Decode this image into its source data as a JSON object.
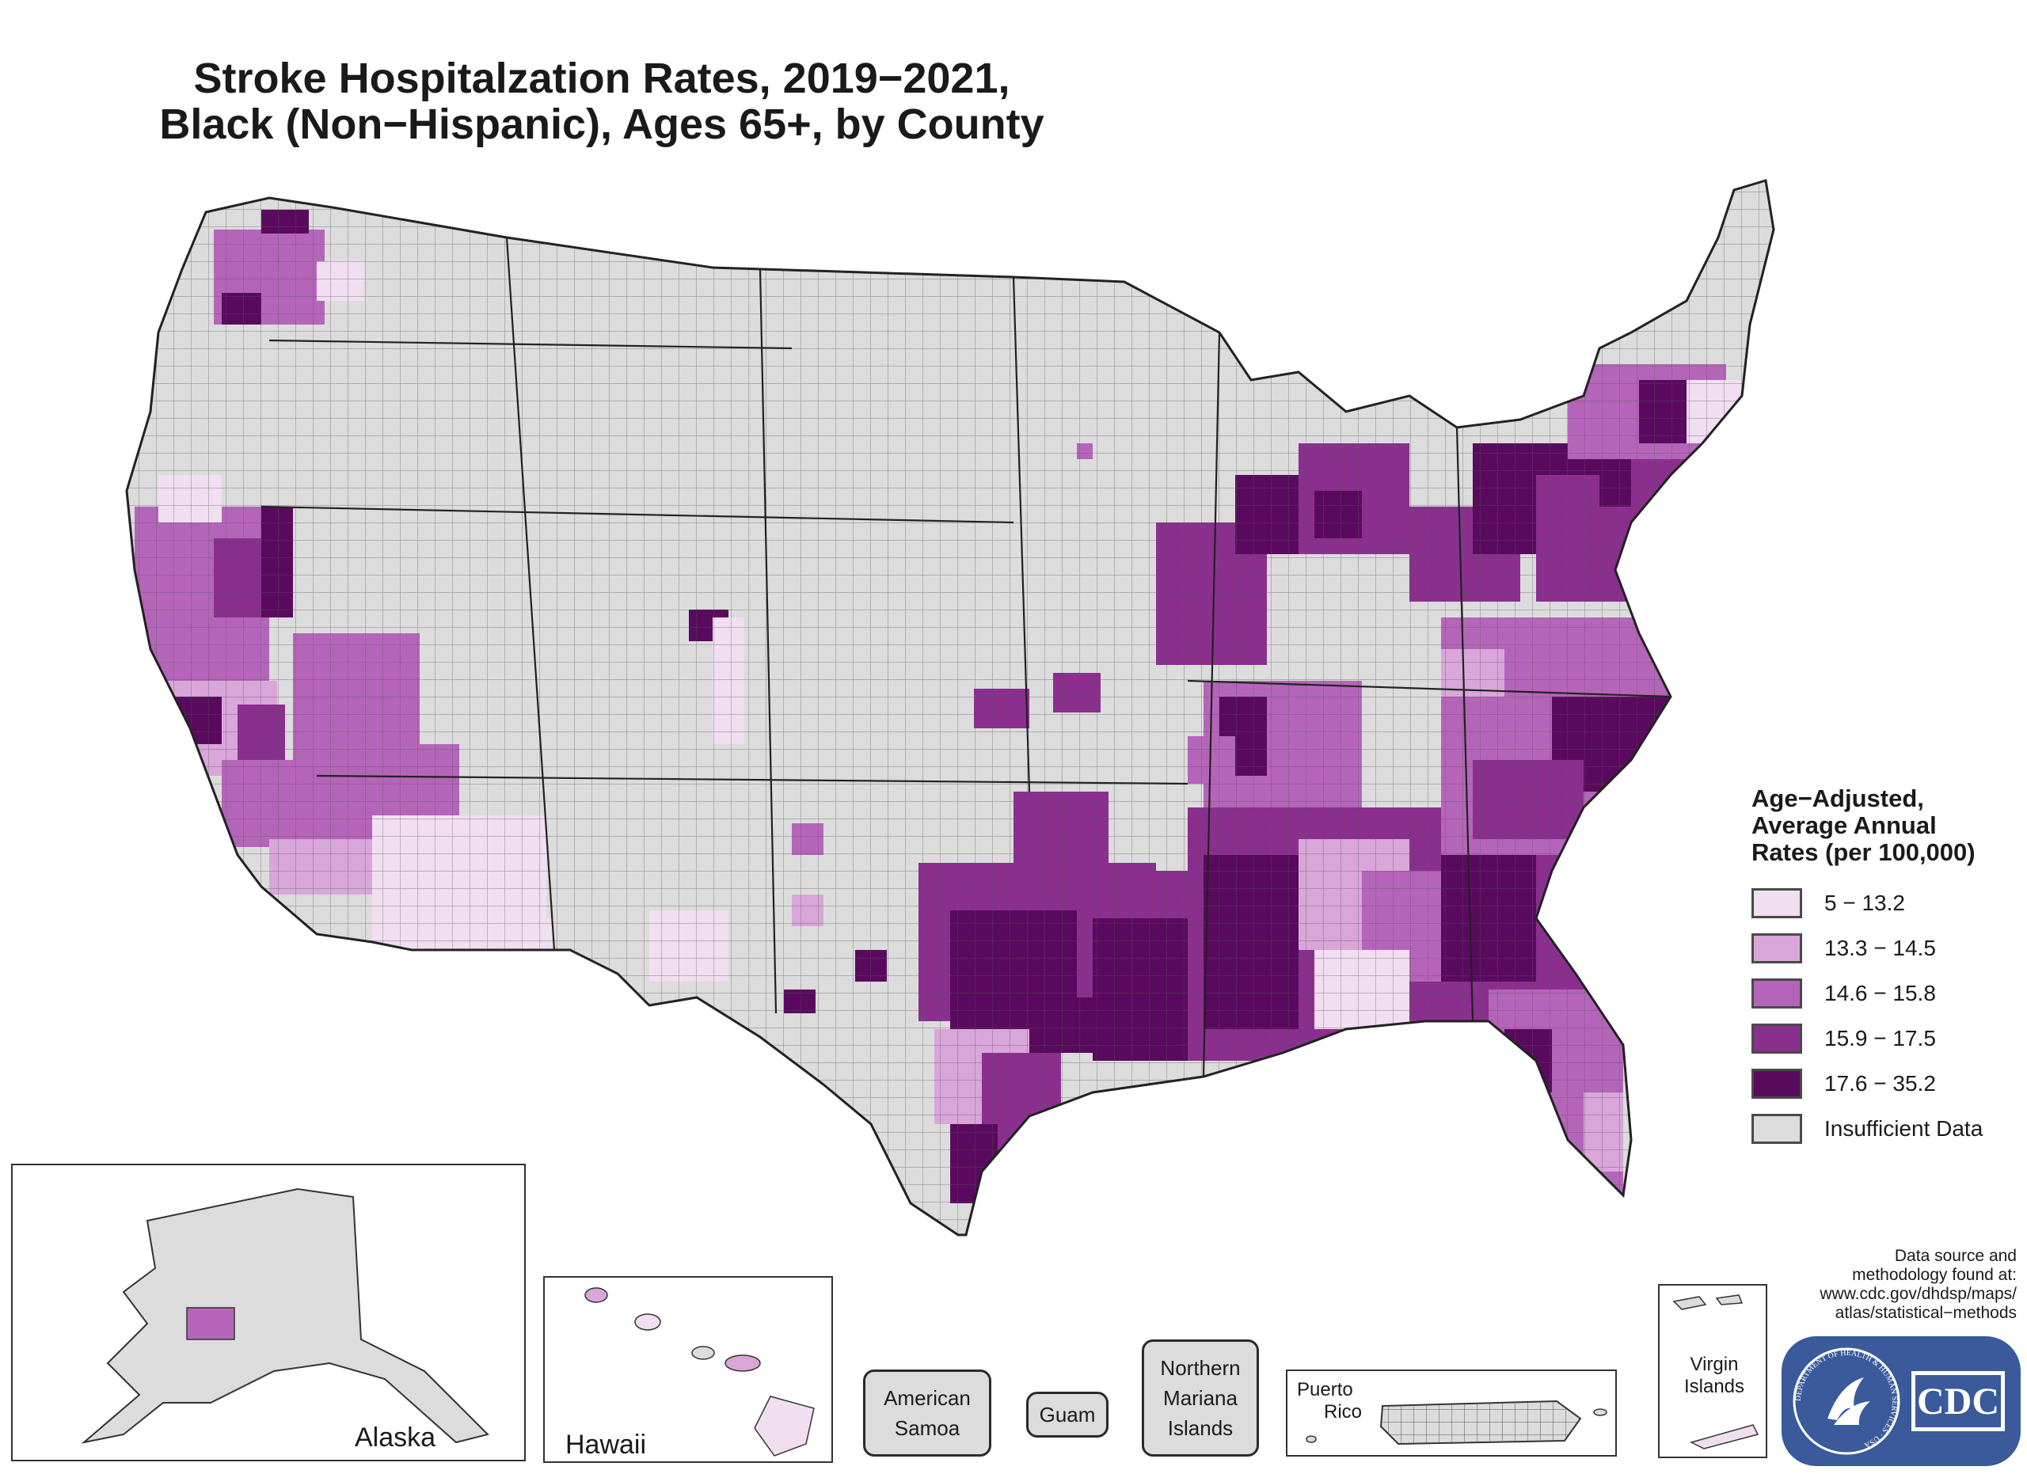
{
  "title": {
    "line1": "Stroke Hospitalzation Rates, 2019−2021,",
    "line2": "Black (Non−Hispanic), Ages 65+, by County"
  },
  "legend": {
    "title_lines": [
      "Age−Adjusted,",
      "Average Annual",
      "Rates (per 100,000)"
    ],
    "items": [
      {
        "label": "5 − 13.2",
        "color": "#f1def1"
      },
      {
        "label": "13.3 − 14.5",
        "color": "#d9a6d9"
      },
      {
        "label": "14.6 − 15.8",
        "color": "#b565b9"
      },
      {
        "label": "15.9 − 17.5",
        "color": "#8b2f8f"
      },
      {
        "label": "17.6 − 35.2",
        "color": "#5a0a5e"
      },
      {
        "label": "Insufficient Data",
        "color": "#dcdcdc"
      }
    ]
  },
  "insets": {
    "alaska": "Alaska",
    "hawaii": "Hawaii",
    "puerto_rico": [
      "Puerto",
      "Rico"
    ],
    "virgin_islands": [
      "Virgin",
      "Islands"
    ]
  },
  "territories": {
    "american_samoa": [
      "American",
      "Samoa"
    ],
    "guam": [
      "Guam"
    ],
    "northern_mariana": [
      "Northern",
      "Mariana",
      "Islands"
    ]
  },
  "source": {
    "lines": [
      "Data source and",
      "methodology found at:",
      "www.cdc.gov/dhdsp/maps/",
      "atlas/statistical−methods"
    ]
  },
  "logo": {
    "text": "CDC",
    "ring_text": "DEPARTMENT OF HEALTH & HUMAN SERVICES · USA"
  }
}
